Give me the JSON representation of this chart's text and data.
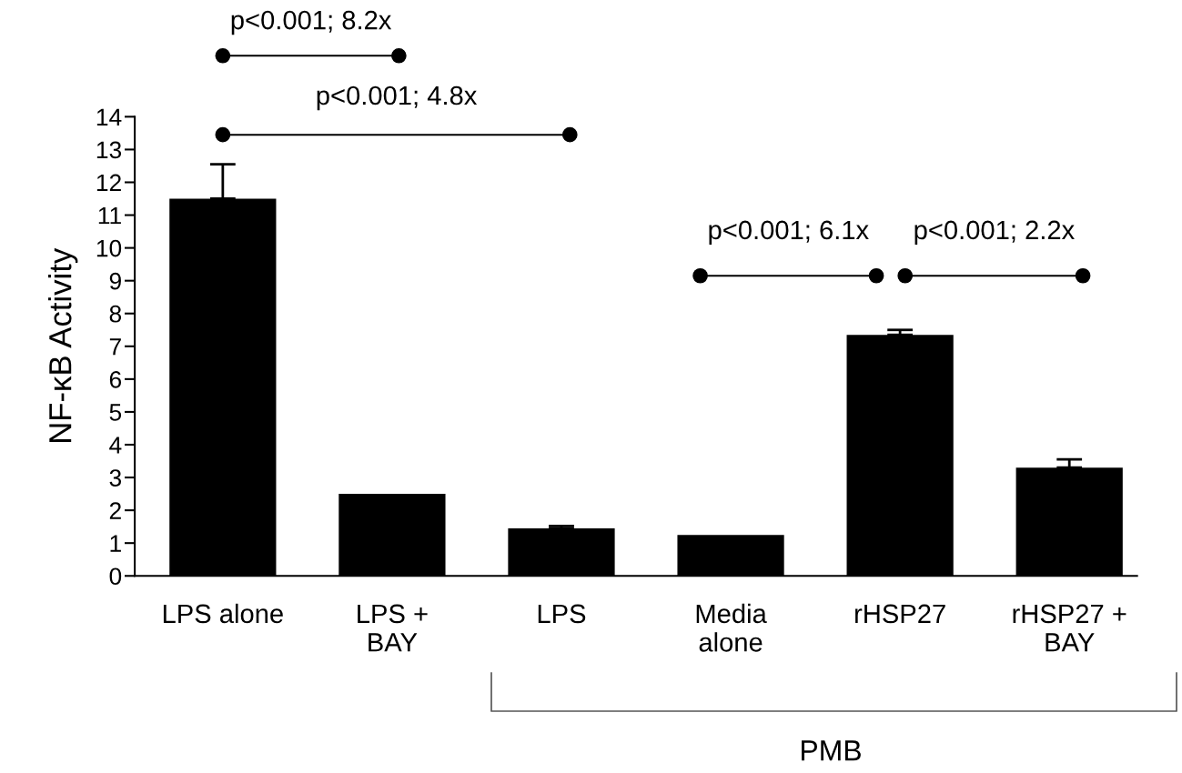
{
  "chart_data": {
    "type": "bar",
    "ylabel": "NF-κB Activity",
    "categories": [
      "LPS alone",
      "LPS +\nBAY",
      "LPS",
      "Media\nalone",
      "rHSP27",
      "rHSP27 +\nBAY"
    ],
    "values": [
      11.5,
      2.5,
      1.45,
      1.25,
      7.35,
      3.3
    ],
    "errors": [
      1.05,
      null,
      0.07,
      null,
      0.15,
      0.25
    ],
    "color": "#000000",
    "ylim": [
      0,
      14
    ],
    "yticks": [
      0,
      1,
      2,
      3,
      4,
      5,
      6,
      7,
      8,
      9,
      10,
      11,
      12,
      13,
      14
    ],
    "annotations": [
      "p<0.001; 8.2x",
      "p<0.001; 4.8x",
      "p<0.001; 6.1x",
      "p<0.001; 2.2x",
      "PMB"
    ]
  }
}
